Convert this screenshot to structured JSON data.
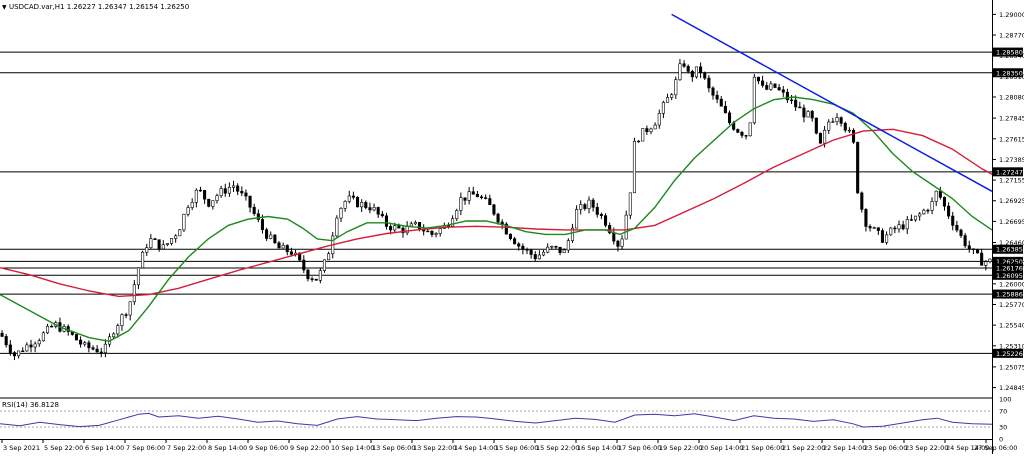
{
  "header": {
    "arrow": "▼",
    "title": "USDCAD.var,H1  1.26227 1.26347 1.26154 1.26250"
  },
  "rsi": {
    "label": "RSI(14) 36.8128"
  },
  "colors": {
    "candle": "#000000",
    "ma_fast": "#1a8a1a",
    "ma_slow": "#d81b3c",
    "trendline": "#0a1ee6",
    "level": "#000000",
    "rsi_line": "#3a3aa8",
    "price_tag_bg": "#000000",
    "price_tag_text": "#ffffff"
  },
  "chart_data": [
    {
      "type": "candlestick",
      "symbol": "USDCAD.var",
      "timeframe": "H1",
      "ohlc_last": {
        "open": 1.26227,
        "high": 1.26347,
        "low": 1.26154,
        "close": 1.2625
      },
      "ylim": [
        1.2474,
        1.2916
      ],
      "y_ticks": [
        "1.29000",
        "1.28770",
        "1.28540",
        "1.28310",
        "1.28080",
        "1.27845",
        "1.27615",
        "1.27385",
        "1.27155",
        "1.26925",
        "1.26695",
        "1.26460",
        "1.26230",
        "1.26000",
        "1.25770",
        "1.25540",
        "1.25310",
        "1.25075",
        "1.24845"
      ],
      "x_tick_labels": [
        "3 Sep 2021",
        "5 Sep 22:00",
        "6 Sep 14:00",
        "7 Sep 06:00",
        "7 Sep 22:00",
        "8 Sep 14:00",
        "9 Sep 06:00",
        "9 Sep 22:00",
        "10 Sep 14:00",
        "13 Sep 06:00",
        "13 Sep 22:00",
        "14 Sep 14:00",
        "15 Sep 06:00",
        "15 Sep 22:00",
        "16 Sep 14:00",
        "17 Sep 06:00",
        "19 Sep 22:00",
        "20 Sep 14:00",
        "21 Sep 06:00",
        "21 Sep 22:00",
        "22 Sep 14:00",
        "23 Sep 06:00",
        "23 Sep 22:00",
        "24 Sep 14:00",
        "27 Sep 06:00"
      ],
      "horizontal_levels": [
        {
          "price": 1.2858,
          "label": "1.28580"
        },
        {
          "price": 1.2835,
          "label": "1.28350"
        },
        {
          "price": 1.27247,
          "label": "1.27247"
        },
        {
          "price": 1.26385,
          "label": "1.26385"
        },
        {
          "price": 1.2625,
          "label": "1.26250"
        },
        {
          "price": 1.26176,
          "label": "1.26176"
        },
        {
          "price": 1.26095,
          "label": "1.26095"
        },
        {
          "price": 1.25886,
          "label": "1.25886"
        },
        {
          "price": 1.25226,
          "label": "1.25226"
        }
      ],
      "trendline": {
        "from": {
          "x_frac": 0.677,
          "price": 1.29
        },
        "to": {
          "x_frac": 1.0,
          "price": 1.2703
        }
      },
      "close_path": [
        [
          0.0,
          1.2545
        ],
        [
          0.015,
          1.252
        ],
        [
          0.025,
          1.253
        ],
        [
          0.04,
          1.254
        ],
        [
          0.055,
          1.2555
        ],
        [
          0.07,
          1.2545
        ],
        [
          0.085,
          1.253
        ],
        [
          0.105,
          1.2525
        ],
        [
          0.115,
          1.255
        ],
        [
          0.13,
          1.2575
        ],
        [
          0.14,
          1.262
        ],
        [
          0.15,
          1.265
        ],
        [
          0.165,
          1.264
        ],
        [
          0.18,
          1.266
        ],
        [
          0.19,
          1.269
        ],
        [
          0.2,
          1.2705
        ],
        [
          0.21,
          1.269
        ],
        [
          0.22,
          1.27
        ],
        [
          0.235,
          1.271
        ],
        [
          0.25,
          1.269
        ],
        [
          0.265,
          1.266
        ],
        [
          0.28,
          1.264
        ],
        [
          0.295,
          1.2635
        ],
        [
          0.31,
          1.261
        ],
        [
          0.32,
          1.2605
        ],
        [
          0.33,
          1.263
        ],
        [
          0.34,
          1.268
        ],
        [
          0.35,
          1.2695
        ],
        [
          0.36,
          1.269
        ],
        [
          0.375,
          1.2685
        ],
        [
          0.39,
          1.2665
        ],
        [
          0.405,
          1.266
        ],
        [
          0.42,
          1.2665
        ],
        [
          0.435,
          1.2655
        ],
        [
          0.45,
          1.2665
        ],
        [
          0.465,
          1.2695
        ],
        [
          0.48,
          1.27
        ],
        [
          0.495,
          1.2685
        ],
        [
          0.51,
          1.266
        ],
        [
          0.525,
          1.264
        ],
        [
          0.54,
          1.263
        ],
        [
          0.555,
          1.264
        ],
        [
          0.57,
          1.2635
        ],
        [
          0.58,
          1.268
        ],
        [
          0.595,
          1.269
        ],
        [
          0.61,
          1.267
        ],
        [
          0.625,
          1.264
        ],
        [
          0.635,
          1.27
        ],
        [
          0.64,
          1.276
        ],
        [
          0.65,
          1.277
        ],
        [
          0.66,
          1.278
        ],
        [
          0.67,
          1.28
        ],
        [
          0.68,
          1.282
        ],
        [
          0.688,
          1.285
        ],
        [
          0.695,
          1.283
        ],
        [
          0.705,
          1.284
        ],
        [
          0.715,
          1.2815
        ],
        [
          0.725,
          1.28
        ],
        [
          0.735,
          1.278
        ],
        [
          0.745,
          1.277
        ],
        [
          0.755,
          1.2765
        ],
        [
          0.76,
          1.2835
        ],
        [
          0.77,
          1.2815
        ],
        [
          0.78,
          1.282
        ],
        [
          0.79,
          1.281
        ],
        [
          0.8,
          1.28
        ],
        [
          0.81,
          1.279
        ],
        [
          0.818,
          1.2785
        ],
        [
          0.826,
          1.275
        ],
        [
          0.835,
          1.278
        ],
        [
          0.845,
          1.279
        ],
        [
          0.852,
          1.2775
        ],
        [
          0.86,
          1.276
        ],
        [
          0.865,
          1.27
        ],
        [
          0.872,
          1.267
        ],
        [
          0.88,
          1.266
        ],
        [
          0.89,
          1.265
        ],
        [
          0.9,
          1.266
        ],
        [
          0.91,
          1.2665
        ],
        [
          0.92,
          1.267
        ],
        [
          0.93,
          1.268
        ],
        [
          0.94,
          1.269
        ],
        [
          0.945,
          1.2705
        ],
        [
          0.95,
          1.269
        ],
        [
          0.96,
          1.267
        ],
        [
          0.97,
          1.265
        ],
        [
          0.98,
          1.2635
        ],
        [
          0.99,
          1.2625
        ],
        [
          1.0,
          1.2625
        ]
      ],
      "ma_fast_path": [
        [
          0.0,
          1.2588
        ],
        [
          0.03,
          1.257
        ],
        [
          0.06,
          1.2552
        ],
        [
          0.09,
          1.254
        ],
        [
          0.11,
          1.2536
        ],
        [
          0.13,
          1.2548
        ],
        [
          0.15,
          1.2575
        ],
        [
          0.17,
          1.2605
        ],
        [
          0.19,
          1.263
        ],
        [
          0.21,
          1.265
        ],
        [
          0.23,
          1.2665
        ],
        [
          0.25,
          1.2672
        ],
        [
          0.27,
          1.2675
        ],
        [
          0.29,
          1.2672
        ],
        [
          0.305,
          1.2662
        ],
        [
          0.32,
          1.265
        ],
        [
          0.335,
          1.2648
        ],
        [
          0.35,
          1.2658
        ],
        [
          0.37,
          1.2668
        ],
        [
          0.39,
          1.2668
        ],
        [
          0.41,
          1.2664
        ],
        [
          0.43,
          1.2662
        ],
        [
          0.45,
          1.2665
        ],
        [
          0.47,
          1.267
        ],
        [
          0.49,
          1.267
        ],
        [
          0.51,
          1.2665
        ],
        [
          0.53,
          1.2658
        ],
        [
          0.55,
          1.2655
        ],
        [
          0.57,
          1.2655
        ],
        [
          0.59,
          1.266
        ],
        [
          0.61,
          1.266
        ],
        [
          0.625,
          1.2655
        ],
        [
          0.64,
          1.2662
        ],
        [
          0.66,
          1.2685
        ],
        [
          0.68,
          1.2715
        ],
        [
          0.7,
          1.274
        ],
        [
          0.72,
          1.276
        ],
        [
          0.74,
          1.278
        ],
        [
          0.76,
          1.2795
        ],
        [
          0.78,
          1.2805
        ],
        [
          0.8,
          1.2808
        ],
        [
          0.82,
          1.2805
        ],
        [
          0.84,
          1.28
        ],
        [
          0.86,
          1.279
        ],
        [
          0.88,
          1.277
        ],
        [
          0.9,
          1.2745
        ],
        [
          0.92,
          1.2725
        ],
        [
          0.94,
          1.271
        ],
        [
          0.96,
          1.2695
        ],
        [
          0.98,
          1.2675
        ],
        [
          1.0,
          1.266
        ]
      ],
      "ma_slow_path": [
        [
          0.0,
          1.2618
        ],
        [
          0.03,
          1.261
        ],
        [
          0.06,
          1.26
        ],
        [
          0.09,
          1.2592
        ],
        [
          0.12,
          1.2586
        ],
        [
          0.15,
          1.2588
        ],
        [
          0.18,
          1.2595
        ],
        [
          0.21,
          1.2605
        ],
        [
          0.24,
          1.2615
        ],
        [
          0.27,
          1.2624
        ],
        [
          0.3,
          1.2633
        ],
        [
          0.33,
          1.2642
        ],
        [
          0.36,
          1.265
        ],
        [
          0.39,
          1.2656
        ],
        [
          0.42,
          1.266
        ],
        [
          0.45,
          1.2663
        ],
        [
          0.48,
          1.2664
        ],
        [
          0.51,
          1.2663
        ],
        [
          0.54,
          1.2661
        ],
        [
          0.57,
          1.266
        ],
        [
          0.6,
          1.266
        ],
        [
          0.63,
          1.266
        ],
        [
          0.66,
          1.2665
        ],
        [
          0.69,
          1.268
        ],
        [
          0.72,
          1.2695
        ],
        [
          0.75,
          1.2712
        ],
        [
          0.78,
          1.273
        ],
        [
          0.81,
          1.2745
        ],
        [
          0.84,
          1.276
        ],
        [
          0.87,
          1.277
        ],
        [
          0.9,
          1.2772
        ],
        [
          0.93,
          1.2765
        ],
        [
          0.96,
          1.275
        ],
        [
          0.99,
          1.2728
        ],
        [
          1.0,
          1.2722
        ]
      ]
    },
    {
      "type": "line",
      "title": "RSI(14) 36.8128",
      "ylim": [
        0,
        100
      ],
      "y_ticks": [
        "100",
        "70",
        "30",
        "0"
      ],
      "levels": [
        70,
        30
      ],
      "path": [
        [
          0.0,
          38
        ],
        [
          0.02,
          33
        ],
        [
          0.04,
          42
        ],
        [
          0.06,
          36
        ],
        [
          0.08,
          31
        ],
        [
          0.1,
          34
        ],
        [
          0.12,
          48
        ],
        [
          0.14,
          62
        ],
        [
          0.15,
          64
        ],
        [
          0.16,
          55
        ],
        [
          0.18,
          58
        ],
        [
          0.2,
          52
        ],
        [
          0.22,
          57
        ],
        [
          0.24,
          50
        ],
        [
          0.26,
          42
        ],
        [
          0.28,
          45
        ],
        [
          0.3,
          38
        ],
        [
          0.32,
          34
        ],
        [
          0.34,
          50
        ],
        [
          0.36,
          56
        ],
        [
          0.38,
          50
        ],
        [
          0.4,
          48
        ],
        [
          0.42,
          46
        ],
        [
          0.44,
          52
        ],
        [
          0.46,
          56
        ],
        [
          0.48,
          55
        ],
        [
          0.5,
          50
        ],
        [
          0.52,
          44
        ],
        [
          0.54,
          40
        ],
        [
          0.56,
          46
        ],
        [
          0.58,
          52
        ],
        [
          0.6,
          49
        ],
        [
          0.62,
          42
        ],
        [
          0.64,
          60
        ],
        [
          0.66,
          62
        ],
        [
          0.68,
          58
        ],
        [
          0.7,
          63
        ],
        [
          0.72,
          55
        ],
        [
          0.74,
          46
        ],
        [
          0.76,
          58
        ],
        [
          0.78,
          52
        ],
        [
          0.8,
          50
        ],
        [
          0.82,
          44
        ],
        [
          0.84,
          48
        ],
        [
          0.86,
          38
        ],
        [
          0.87,
          30
        ],
        [
          0.89,
          32
        ],
        [
          0.91,
          40
        ],
        [
          0.93,
          48
        ],
        [
          0.945,
          52
        ],
        [
          0.96,
          42
        ],
        [
          0.98,
          38
        ],
        [
          1.0,
          37
        ]
      ]
    }
  ]
}
